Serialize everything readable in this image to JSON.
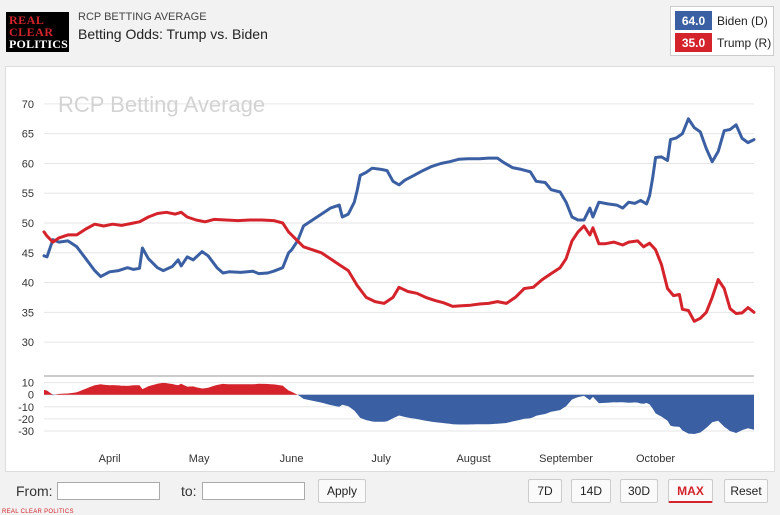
{
  "header": {
    "logo_line1": "REAL",
    "logo_line2": "CLEAR",
    "logo_line3": "POLITICS",
    "kicker": "RCP BETTING AVERAGE",
    "title": "Betting Odds: Trump vs. Biden"
  },
  "legend": [
    {
      "value": "64.0",
      "name": "Biden (D)",
      "color": "#3b5fa3"
    },
    {
      "value": "35.0",
      "name": "Trump (R)",
      "color": "#d4232b"
    }
  ],
  "controls": {
    "from_label": "From:",
    "to_label": "to:",
    "from_value": "",
    "to_value": "",
    "apply_label": "Apply",
    "ranges": [
      "7D",
      "14D",
      "30D",
      "MAX"
    ],
    "selected_range": "MAX",
    "reset_label": "Reset"
  },
  "footer": "REAL CLEAR POLITICS",
  "chart_data": {
    "type": "line",
    "watermark": "RCP Betting Average",
    "ylim": [
      28,
      72
    ],
    "yticks": [
      30,
      35,
      40,
      45,
      50,
      55,
      60,
      65,
      70
    ],
    "spread_ylim": [
      -35,
      13
    ],
    "spread_yticks": [
      10,
      0,
      -10,
      -20,
      -30
    ],
    "x_range": [
      "2020-03-10",
      "2020-11-03"
    ],
    "xtick_labels": [
      {
        "label": "April",
        "date": "2020-04-01"
      },
      {
        "label": "May",
        "date": "2020-05-01"
      },
      {
        "label": "June",
        "date": "2020-06-01"
      },
      {
        "label": "July",
        "date": "2020-07-01"
      },
      {
        "label": "August",
        "date": "2020-08-01"
      },
      {
        "label": "September",
        "date": "2020-09-01"
      },
      {
        "label": "October",
        "date": "2020-10-01"
      }
    ],
    "series": [
      {
        "name": "Biden (D)",
        "color": "#3b5fa3",
        "points": [
          [
            "2020-03-10",
            44.5
          ],
          [
            "2020-03-11",
            44.3
          ],
          [
            "2020-03-13",
            47.2
          ],
          [
            "2020-03-15",
            46.8
          ],
          [
            "2020-03-18",
            47.0
          ],
          [
            "2020-03-21",
            46.0
          ],
          [
            "2020-03-24",
            44.0
          ],
          [
            "2020-03-27",
            42.0
          ],
          [
            "2020-03-29",
            41.0
          ],
          [
            "2020-04-01",
            41.8
          ],
          [
            "2020-04-04",
            42.0
          ],
          [
            "2020-04-07",
            42.5
          ],
          [
            "2020-04-09",
            42.2
          ],
          [
            "2020-04-11",
            42.4
          ],
          [
            "2020-04-12",
            45.8
          ],
          [
            "2020-04-14",
            44.0
          ],
          [
            "2020-04-17",
            42.5
          ],
          [
            "2020-04-19",
            42.0
          ],
          [
            "2020-04-22",
            42.7
          ],
          [
            "2020-04-24",
            43.8
          ],
          [
            "2020-04-25",
            42.8
          ],
          [
            "2020-04-27",
            44.3
          ],
          [
            "2020-04-29",
            43.8
          ],
          [
            "2020-05-02",
            45.2
          ],
          [
            "2020-05-04",
            44.5
          ],
          [
            "2020-05-07",
            42.5
          ],
          [
            "2020-05-09",
            41.6
          ],
          [
            "2020-05-11",
            41.8
          ],
          [
            "2020-05-15",
            41.7
          ],
          [
            "2020-05-19",
            41.9
          ],
          [
            "2020-05-21",
            41.5
          ],
          [
            "2020-05-24",
            41.6
          ],
          [
            "2020-05-26",
            41.9
          ],
          [
            "2020-05-29",
            42.5
          ],
          [
            "2020-05-31",
            45.0
          ],
          [
            "2020-06-01",
            45.5
          ],
          [
            "2020-06-03",
            47.0
          ],
          [
            "2020-06-05",
            49.5
          ],
          [
            "2020-06-08",
            50.5
          ],
          [
            "2020-06-11",
            51.5
          ],
          [
            "2020-06-14",
            52.5
          ],
          [
            "2020-06-17",
            53.0
          ],
          [
            "2020-06-18",
            51.0
          ],
          [
            "2020-06-20",
            51.5
          ],
          [
            "2020-06-22",
            53.5
          ],
          [
            "2020-06-23",
            55.5
          ],
          [
            "2020-06-24",
            58.0
          ],
          [
            "2020-06-26",
            58.5
          ],
          [
            "2020-06-28",
            59.2
          ],
          [
            "2020-07-01",
            59.0
          ],
          [
            "2020-07-03",
            58.8
          ],
          [
            "2020-07-05",
            57.0
          ],
          [
            "2020-07-07",
            56.4
          ],
          [
            "2020-07-09",
            57.2
          ],
          [
            "2020-07-12",
            58.0
          ],
          [
            "2020-07-15",
            58.8
          ],
          [
            "2020-07-18",
            59.5
          ],
          [
            "2020-07-21",
            60.0
          ],
          [
            "2020-07-24",
            60.3
          ],
          [
            "2020-07-27",
            60.7
          ],
          [
            "2020-07-30",
            60.8
          ],
          [
            "2020-08-03",
            60.8
          ],
          [
            "2020-08-06",
            60.9
          ],
          [
            "2020-08-09",
            60.9
          ],
          [
            "2020-08-11",
            60.2
          ],
          [
            "2020-08-14",
            59.3
          ],
          [
            "2020-08-17",
            59.0
          ],
          [
            "2020-08-20",
            58.6
          ],
          [
            "2020-08-22",
            57.0
          ],
          [
            "2020-08-25",
            56.8
          ],
          [
            "2020-08-27",
            55.6
          ],
          [
            "2020-08-30",
            55.2
          ],
          [
            "2020-09-01",
            53.5
          ],
          [
            "2020-09-03",
            51.0
          ],
          [
            "2020-09-05",
            50.5
          ],
          [
            "2020-09-07",
            50.5
          ],
          [
            "2020-09-09",
            52.5
          ],
          [
            "2020-09-10",
            51.0
          ],
          [
            "2020-09-12",
            53.5
          ],
          [
            "2020-09-15",
            53.2
          ],
          [
            "2020-09-18",
            53.0
          ],
          [
            "2020-09-20",
            52.5
          ],
          [
            "2020-09-22",
            53.5
          ],
          [
            "2020-09-24",
            53.3
          ],
          [
            "2020-09-26",
            53.8
          ],
          [
            "2020-09-28",
            53.2
          ],
          [
            "2020-09-29",
            54.6
          ],
          [
            "2020-09-30",
            57.5
          ],
          [
            "2020-10-01",
            61.0
          ],
          [
            "2020-10-03",
            61.1
          ],
          [
            "2020-10-05",
            60.5
          ],
          [
            "2020-10-06",
            64.0
          ],
          [
            "2020-10-08",
            64.3
          ],
          [
            "2020-10-10",
            65.0
          ],
          [
            "2020-10-12",
            67.5
          ],
          [
            "2020-10-14",
            66.0
          ],
          [
            "2020-10-16",
            65.3
          ],
          [
            "2020-10-18",
            62.5
          ],
          [
            "2020-10-20",
            60.3
          ],
          [
            "2020-10-22",
            62.0
          ],
          [
            "2020-10-24",
            65.5
          ],
          [
            "2020-10-26",
            65.7
          ],
          [
            "2020-10-28",
            66.5
          ],
          [
            "2020-10-30",
            64.2
          ],
          [
            "2020-11-01",
            63.5
          ],
          [
            "2020-11-03",
            64.0
          ]
        ]
      },
      {
        "name": "Trump (R)",
        "color": "#d4232b",
        "points": [
          [
            "2020-03-10",
            48.5
          ],
          [
            "2020-03-11",
            47.8
          ],
          [
            "2020-03-13",
            46.8
          ],
          [
            "2020-03-15",
            47.5
          ],
          [
            "2020-03-18",
            48.0
          ],
          [
            "2020-03-21",
            48.0
          ],
          [
            "2020-03-24",
            49.0
          ],
          [
            "2020-03-27",
            49.8
          ],
          [
            "2020-03-30",
            49.5
          ],
          [
            "2020-04-02",
            49.8
          ],
          [
            "2020-04-05",
            49.6
          ],
          [
            "2020-04-08",
            49.9
          ],
          [
            "2020-04-11",
            50.2
          ],
          [
            "2020-04-14",
            51.0
          ],
          [
            "2020-04-17",
            51.6
          ],
          [
            "2020-04-20",
            51.8
          ],
          [
            "2020-04-23",
            51.5
          ],
          [
            "2020-04-25",
            51.8
          ],
          [
            "2020-04-27",
            51.0
          ],
          [
            "2020-04-30",
            50.5
          ],
          [
            "2020-05-03",
            50.2
          ],
          [
            "2020-05-06",
            50.6
          ],
          [
            "2020-05-10",
            50.5
          ],
          [
            "2020-05-14",
            50.4
          ],
          [
            "2020-05-18",
            50.5
          ],
          [
            "2020-05-22",
            50.5
          ],
          [
            "2020-05-26",
            50.4
          ],
          [
            "2020-05-29",
            50.0
          ],
          [
            "2020-05-31",
            48.5
          ],
          [
            "2020-06-02",
            47.5
          ],
          [
            "2020-06-05",
            46.0
          ],
          [
            "2020-06-08",
            45.5
          ],
          [
            "2020-06-11",
            45.0
          ],
          [
            "2020-06-14",
            44.0
          ],
          [
            "2020-06-17",
            43.0
          ],
          [
            "2020-06-20",
            42.0
          ],
          [
            "2020-06-23",
            39.5
          ],
          [
            "2020-06-26",
            37.5
          ],
          [
            "2020-06-29",
            36.8
          ],
          [
            "2020-07-02",
            36.5
          ],
          [
            "2020-07-05",
            37.5
          ],
          [
            "2020-07-07",
            39.2
          ],
          [
            "2020-07-10",
            38.5
          ],
          [
            "2020-07-13",
            38.2
          ],
          [
            "2020-07-16",
            37.5
          ],
          [
            "2020-07-19",
            37.0
          ],
          [
            "2020-07-22",
            36.6
          ],
          [
            "2020-07-25",
            36.0
          ],
          [
            "2020-07-28",
            36.1
          ],
          [
            "2020-07-31",
            36.2
          ],
          [
            "2020-08-03",
            36.4
          ],
          [
            "2020-08-06",
            36.5
          ],
          [
            "2020-08-09",
            36.8
          ],
          [
            "2020-08-12",
            36.5
          ],
          [
            "2020-08-15",
            37.5
          ],
          [
            "2020-08-18",
            39.0
          ],
          [
            "2020-08-21",
            39.2
          ],
          [
            "2020-08-24",
            40.5
          ],
          [
            "2020-08-27",
            41.5
          ],
          [
            "2020-08-30",
            42.5
          ],
          [
            "2020-09-01",
            44.0
          ],
          [
            "2020-09-03",
            47.0
          ],
          [
            "2020-09-05",
            48.5
          ],
          [
            "2020-09-07",
            49.5
          ],
          [
            "2020-09-09",
            48.0
          ],
          [
            "2020-09-10",
            49.2
          ],
          [
            "2020-09-12",
            46.5
          ],
          [
            "2020-09-14",
            46.5
          ],
          [
            "2020-09-17",
            46.8
          ],
          [
            "2020-09-20",
            46.3
          ],
          [
            "2020-09-22",
            46.8
          ],
          [
            "2020-09-25",
            47.0
          ],
          [
            "2020-09-27",
            46.0
          ],
          [
            "2020-09-29",
            46.6
          ],
          [
            "2020-10-01",
            45.5
          ],
          [
            "2020-10-03",
            43.0
          ],
          [
            "2020-10-05",
            39.0
          ],
          [
            "2020-10-07",
            37.8
          ],
          [
            "2020-10-09",
            38.0
          ],
          [
            "2020-10-10",
            35.5
          ],
          [
            "2020-10-12",
            35.3
          ],
          [
            "2020-10-14",
            33.5
          ],
          [
            "2020-10-16",
            34.0
          ],
          [
            "2020-10-18",
            35.0
          ],
          [
            "2020-10-20",
            37.5
          ],
          [
            "2020-10-22",
            40.5
          ],
          [
            "2020-10-24",
            39.0
          ],
          [
            "2020-10-26",
            35.6
          ],
          [
            "2020-10-28",
            34.8
          ],
          [
            "2020-10-30",
            34.9
          ],
          [
            "2020-11-01",
            35.8
          ],
          [
            "2020-11-03",
            35.0
          ]
        ]
      }
    ]
  }
}
